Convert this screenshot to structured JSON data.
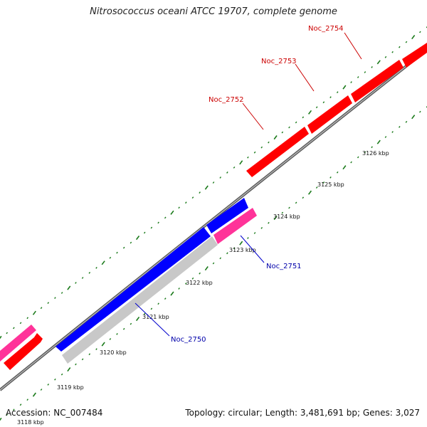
{
  "title": "Nitrosococcus oceani ATCC 19707, complete genome",
  "footer": {
    "accession": "Accession: NC_007484",
    "summary": "Topology: circular; Length: 3,481,691 bp; Genes: 3,027"
  },
  "colors": {
    "forward_cds": "#ff0000",
    "reverse_cds": "#0000ff",
    "rna_gene": "#ff3399",
    "other_feature": "#c8c8c8",
    "backbone": "#808080",
    "tick": "#1a7a1a",
    "forward_label": "#cc0000",
    "reverse_label": "#0000aa"
  },
  "axis_labels": [
    "3118 kbp",
    "3119 kbp",
    "3120 kbp",
    "3121 kbp",
    "3122 kbp",
    "3123 kbp",
    "3124 kbp",
    "3125 kbp",
    "3126 kbp"
  ],
  "genes": [
    {
      "name": "Noc_2750",
      "strand": "reverse"
    },
    {
      "name": "Noc_2751",
      "strand": "reverse"
    },
    {
      "name": "Noc_2752",
      "strand": "forward"
    },
    {
      "name": "Noc_2753",
      "strand": "forward"
    },
    {
      "name": "Noc_2754",
      "strand": "forward"
    }
  ]
}
